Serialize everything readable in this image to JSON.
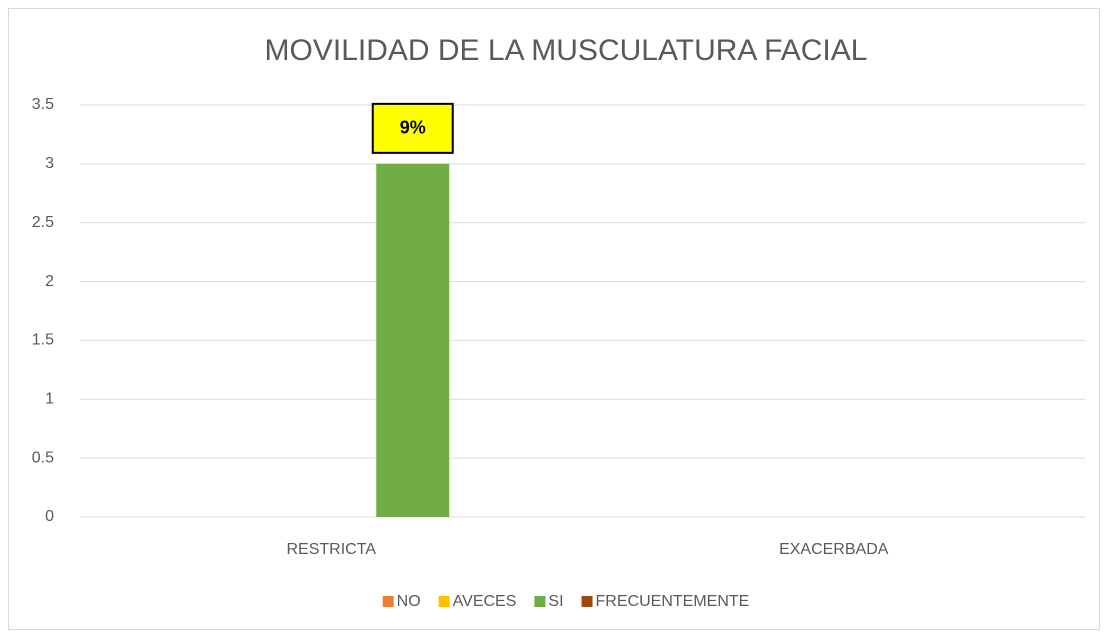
{
  "chart_data": {
    "type": "bar",
    "title": "MOVILIDAD  DE LA MUSCULATURA FACIAL",
    "categories": [
      "RESTRICTA",
      "EXACERBADA"
    ],
    "series": [
      {
        "name": "NO",
        "color": "#ed7d31",
        "values": [
          null,
          null
        ]
      },
      {
        "name": "AVECES",
        "color": "#ffc000",
        "values": [
          null,
          null
        ]
      },
      {
        "name": "SI",
        "color": "#70ad47",
        "values": [
          3,
          null
        ]
      },
      {
        "name": "FRECUENTEMENTE",
        "color": "#9e480e",
        "values": [
          null,
          null
        ]
      }
    ],
    "annotations": [
      {
        "text": "9%",
        "series": 2,
        "category": 0
      }
    ],
    "ylim": [
      0,
      3.5
    ],
    "yticks": [
      0,
      0.5,
      1,
      1.5,
      2,
      2.5,
      3,
      3.5
    ],
    "grid": true,
    "legend": "bottom"
  }
}
